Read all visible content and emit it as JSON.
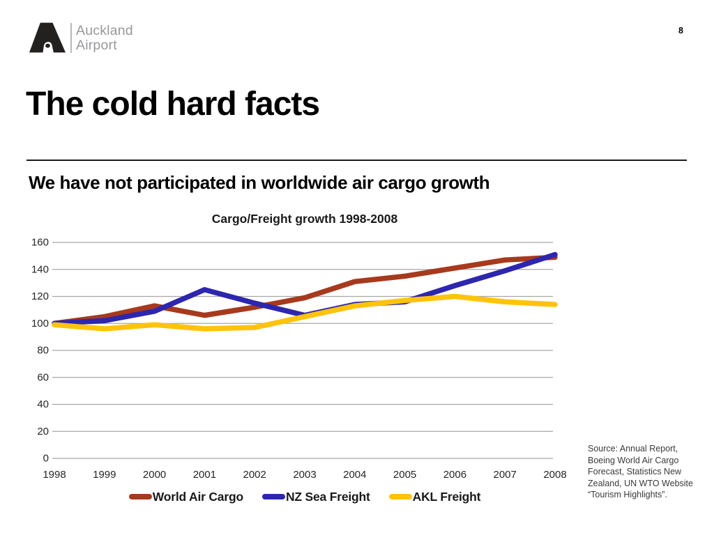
{
  "page": {
    "number": "8"
  },
  "logo": {
    "brand_line1": "Auckland",
    "brand_line2": "Airport"
  },
  "title": "The cold hard facts",
  "subtitle": "We have not participated in worldwide air cargo growth",
  "source_note": "Source: Annual Report, Boeing World Air Cargo Forecast, Statistics New Zealand,  UN WTO Website “Tourism Highlights”.",
  "colors": {
    "gridline": "#a6a6a6",
    "axis_text": "#262626",
    "brand_gray": "#96989b"
  },
  "chart_data": {
    "type": "line",
    "title": "Cargo/Freight growth 1998-2008",
    "categories": [
      "1998",
      "1999",
      "2000",
      "2001",
      "2002",
      "2003",
      "2004",
      "2005",
      "2006",
      "2007",
      "2008"
    ],
    "series": [
      {
        "name": "World Air Cargo",
        "color": "#a7391d",
        "values": [
          100,
          105,
          113,
          106,
          112,
          119,
          131,
          135,
          141,
          147,
          149
        ]
      },
      {
        "name": "NZ Sea Freight",
        "color": "#2d26ae",
        "values": [
          100,
          102,
          109,
          125,
          115,
          106,
          114,
          116,
          128,
          139,
          151
        ]
      },
      {
        "name": "AKL Freight",
        "color": "#ffc30b",
        "values": [
          99,
          96,
          99,
          96,
          97,
          105,
          113,
          117,
          120,
          116,
          114
        ]
      }
    ],
    "xlabel": "",
    "ylabel": "",
    "ylim": [
      0,
      160
    ],
    "ytick_step": 20,
    "grid": true,
    "legend_position": "bottom"
  }
}
